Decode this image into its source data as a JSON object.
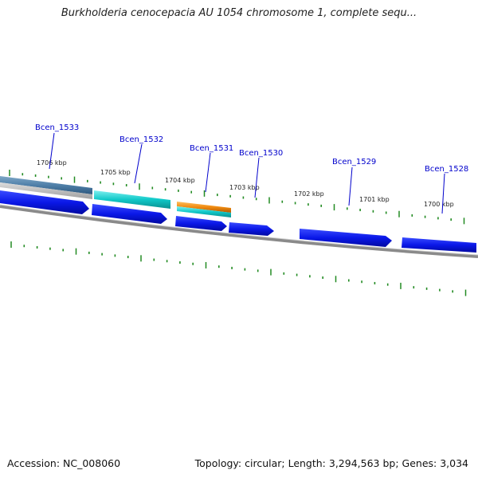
{
  "title": "Burkholderia cenocepacia AU 1054 chromosome 1, complete sequ...",
  "footer": {
    "accession": "Accession: NC_008060",
    "stats": "Topology: circular; Length: 3,294,563 bp; Genes: 3,034"
  },
  "colors": {
    "gene_label": "#0000cc",
    "gene_arrow": "#0a18e8",
    "tick": "#228b22",
    "backbone": "#8a8a8a",
    "steelblue_feature": "#4f7fa8",
    "cyan_feature": "#10c8c8",
    "orange_feature": "#f08a10"
  },
  "kbp_labels": [
    "1706 kbp",
    "1705 kbp",
    "1704 kbp",
    "1703 kbp",
    "1702 kbp",
    "1701 kbp",
    "1700 kbp"
  ],
  "genes": [
    "Bcen_1533",
    "Bcen_1532",
    "Bcen_1531",
    "Bcen_1530",
    "Bcen_1529",
    "Bcen_1528"
  ]
}
